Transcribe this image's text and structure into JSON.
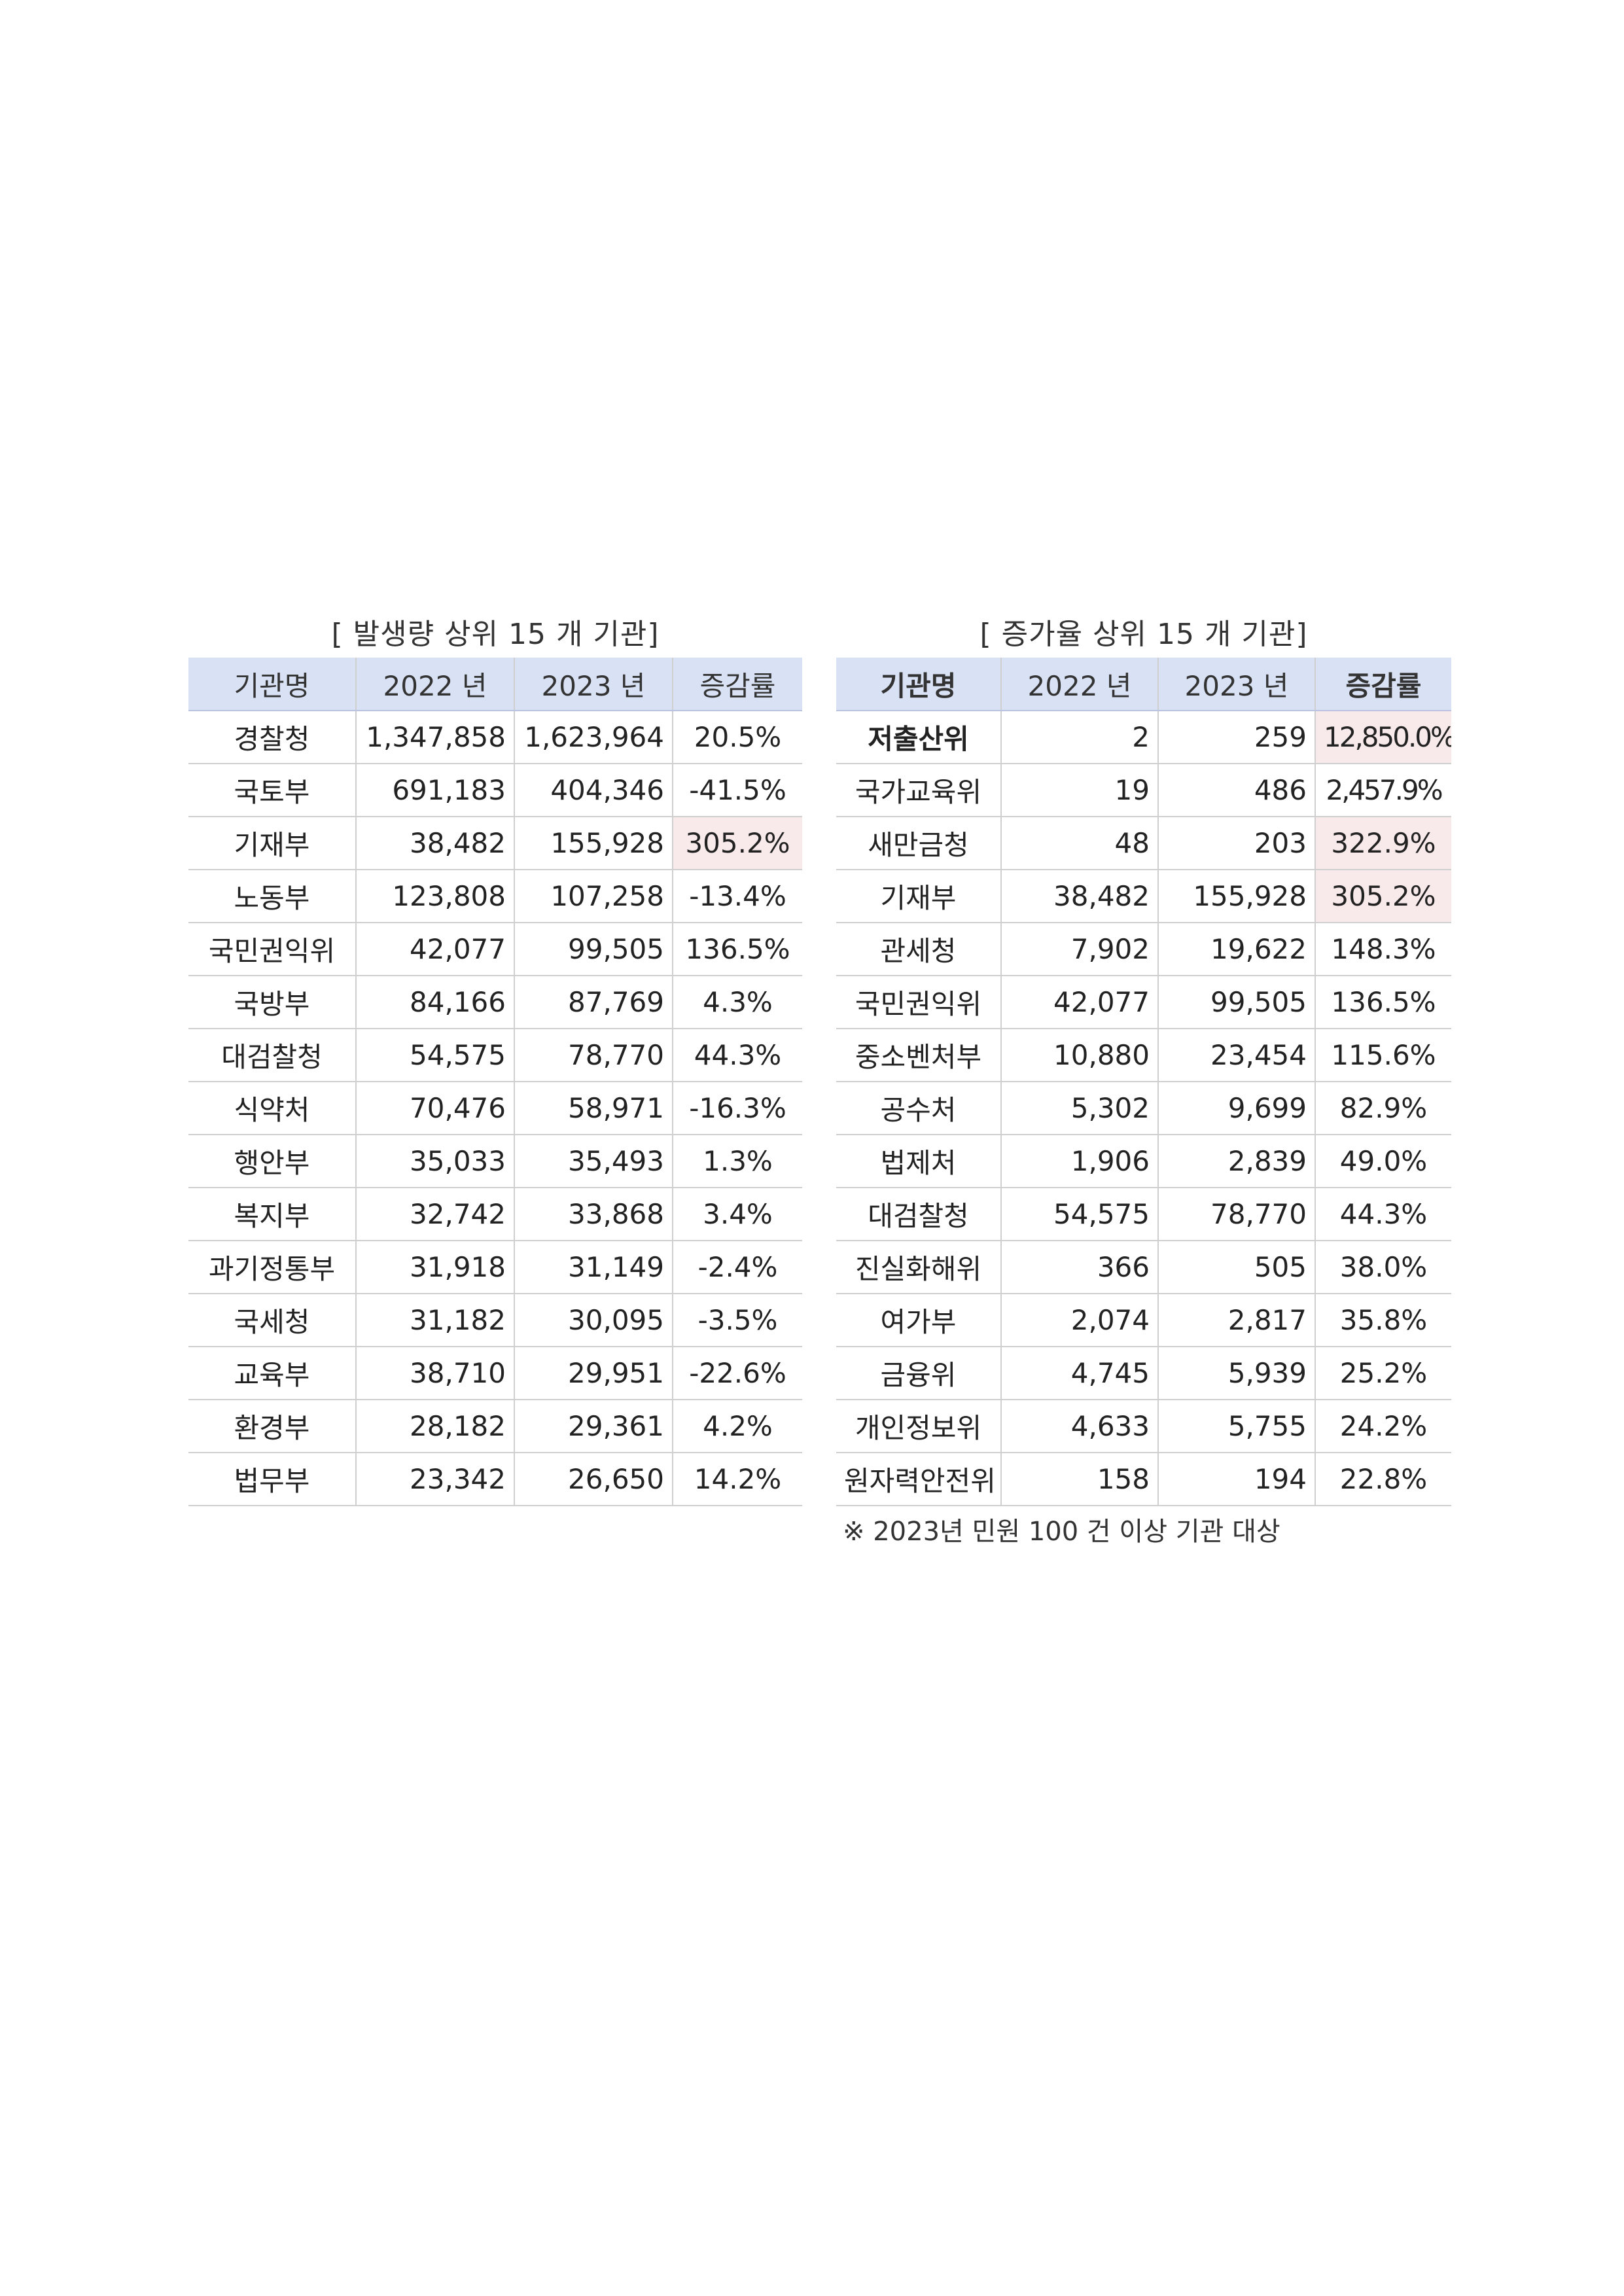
{
  "left_table": {
    "title": "[ 발생량 상위 15 개 기관]",
    "headers": [
      "기관명",
      "2022 년",
      "2023 년",
      "증감률"
    ],
    "rows": [
      {
        "name": "경찰청",
        "y2022": "1,347,858",
        "y2023": "1,623,964",
        "rate": "20.5%"
      },
      {
        "name": "국토부",
        "y2022": "691,183",
        "y2023": "404,346",
        "rate": "-41.5%"
      },
      {
        "name": "기재부",
        "y2022": "38,482",
        "y2023": "155,928",
        "rate": "305.2%"
      },
      {
        "name": "노동부",
        "y2022": "123,808",
        "y2023": "107,258",
        "rate": "-13.4%"
      },
      {
        "name": "국민권익위",
        "y2022": "42,077",
        "y2023": "99,505",
        "rate": "136.5%"
      },
      {
        "name": "국방부",
        "y2022": "84,166",
        "y2023": "87,769",
        "rate": "4.3%"
      },
      {
        "name": "대검찰청",
        "y2022": "54,575",
        "y2023": "78,770",
        "rate": "44.3%"
      },
      {
        "name": "식약처",
        "y2022": "70,476",
        "y2023": "58,971",
        "rate": "-16.3%"
      },
      {
        "name": "행안부",
        "y2022": "35,033",
        "y2023": "35,493",
        "rate": "1.3%"
      },
      {
        "name": "복지부",
        "y2022": "32,742",
        "y2023": "33,868",
        "rate": "3.4%"
      },
      {
        "name": "과기정통부",
        "y2022": "31,918",
        "y2023": "31,149",
        "rate": "-2.4%"
      },
      {
        "name": "국세청",
        "y2022": "31,182",
        "y2023": "30,095",
        "rate": "-3.5%"
      },
      {
        "name": "교육부",
        "y2022": "38,710",
        "y2023": "29,951",
        "rate": "-22.6%"
      },
      {
        "name": "환경부",
        "y2022": "28,182",
        "y2023": "29,361",
        "rate": "4.2%"
      },
      {
        "name": "법무부",
        "y2022": "23,342",
        "y2023": "26,650",
        "rate": "14.2%"
      }
    ]
  },
  "right_table": {
    "title": "[ 증가율 상위 15 개 기관]",
    "headers": [
      "기관명",
      "2022 년",
      "2023 년",
      "증감률"
    ],
    "rows": [
      {
        "name": "저출산위",
        "y2022": "2",
        "y2023": "259",
        "rate": "12,850.0%"
      },
      {
        "name": "국가교육위",
        "y2022": "19",
        "y2023": "486",
        "rate": "2,457.9%"
      },
      {
        "name": "새만금청",
        "y2022": "48",
        "y2023": "203",
        "rate": "322.9%"
      },
      {
        "name": "기재부",
        "y2022": "38,482",
        "y2023": "155,928",
        "rate": "305.2%"
      },
      {
        "name": "관세청",
        "y2022": "7,902",
        "y2023": "19,622",
        "rate": "148.3%"
      },
      {
        "name": "국민권익위",
        "y2022": "42,077",
        "y2023": "99,505",
        "rate": "136.5%"
      },
      {
        "name": "중소벤처부",
        "y2022": "10,880",
        "y2023": "23,454",
        "rate": "115.6%"
      },
      {
        "name": "공수처",
        "y2022": "5,302",
        "y2023": "9,699",
        "rate": "82.9%"
      },
      {
        "name": "법제처",
        "y2022": "1,906",
        "y2023": "2,839",
        "rate": "49.0%"
      },
      {
        "name": "대검찰청",
        "y2022": "54,575",
        "y2023": "78,770",
        "rate": "44.3%"
      },
      {
        "name": "진실화해위",
        "y2022": "366",
        "y2023": "505",
        "rate": "38.0%"
      },
      {
        "name": "여가부",
        "y2022": "2,074",
        "y2023": "2,817",
        "rate": "35.8%"
      },
      {
        "name": "금융위",
        "y2022": "4,745",
        "y2023": "5,939",
        "rate": "25.2%"
      },
      {
        "name": "개인정보위",
        "y2022": "4,633",
        "y2023": "5,755",
        "rate": "24.2%"
      },
      {
        "name": "원자력안전위",
        "y2022": "158",
        "y2023": "194",
        "rate": "22.8%"
      }
    ],
    "footnote": "※ 2023년 민원 100 건 이상 기관 대상"
  },
  "colors": {
    "header_background": "#d9e1f4",
    "highlight_background": "#f8e9ea",
    "grid_line": "#cfcfcf"
  }
}
